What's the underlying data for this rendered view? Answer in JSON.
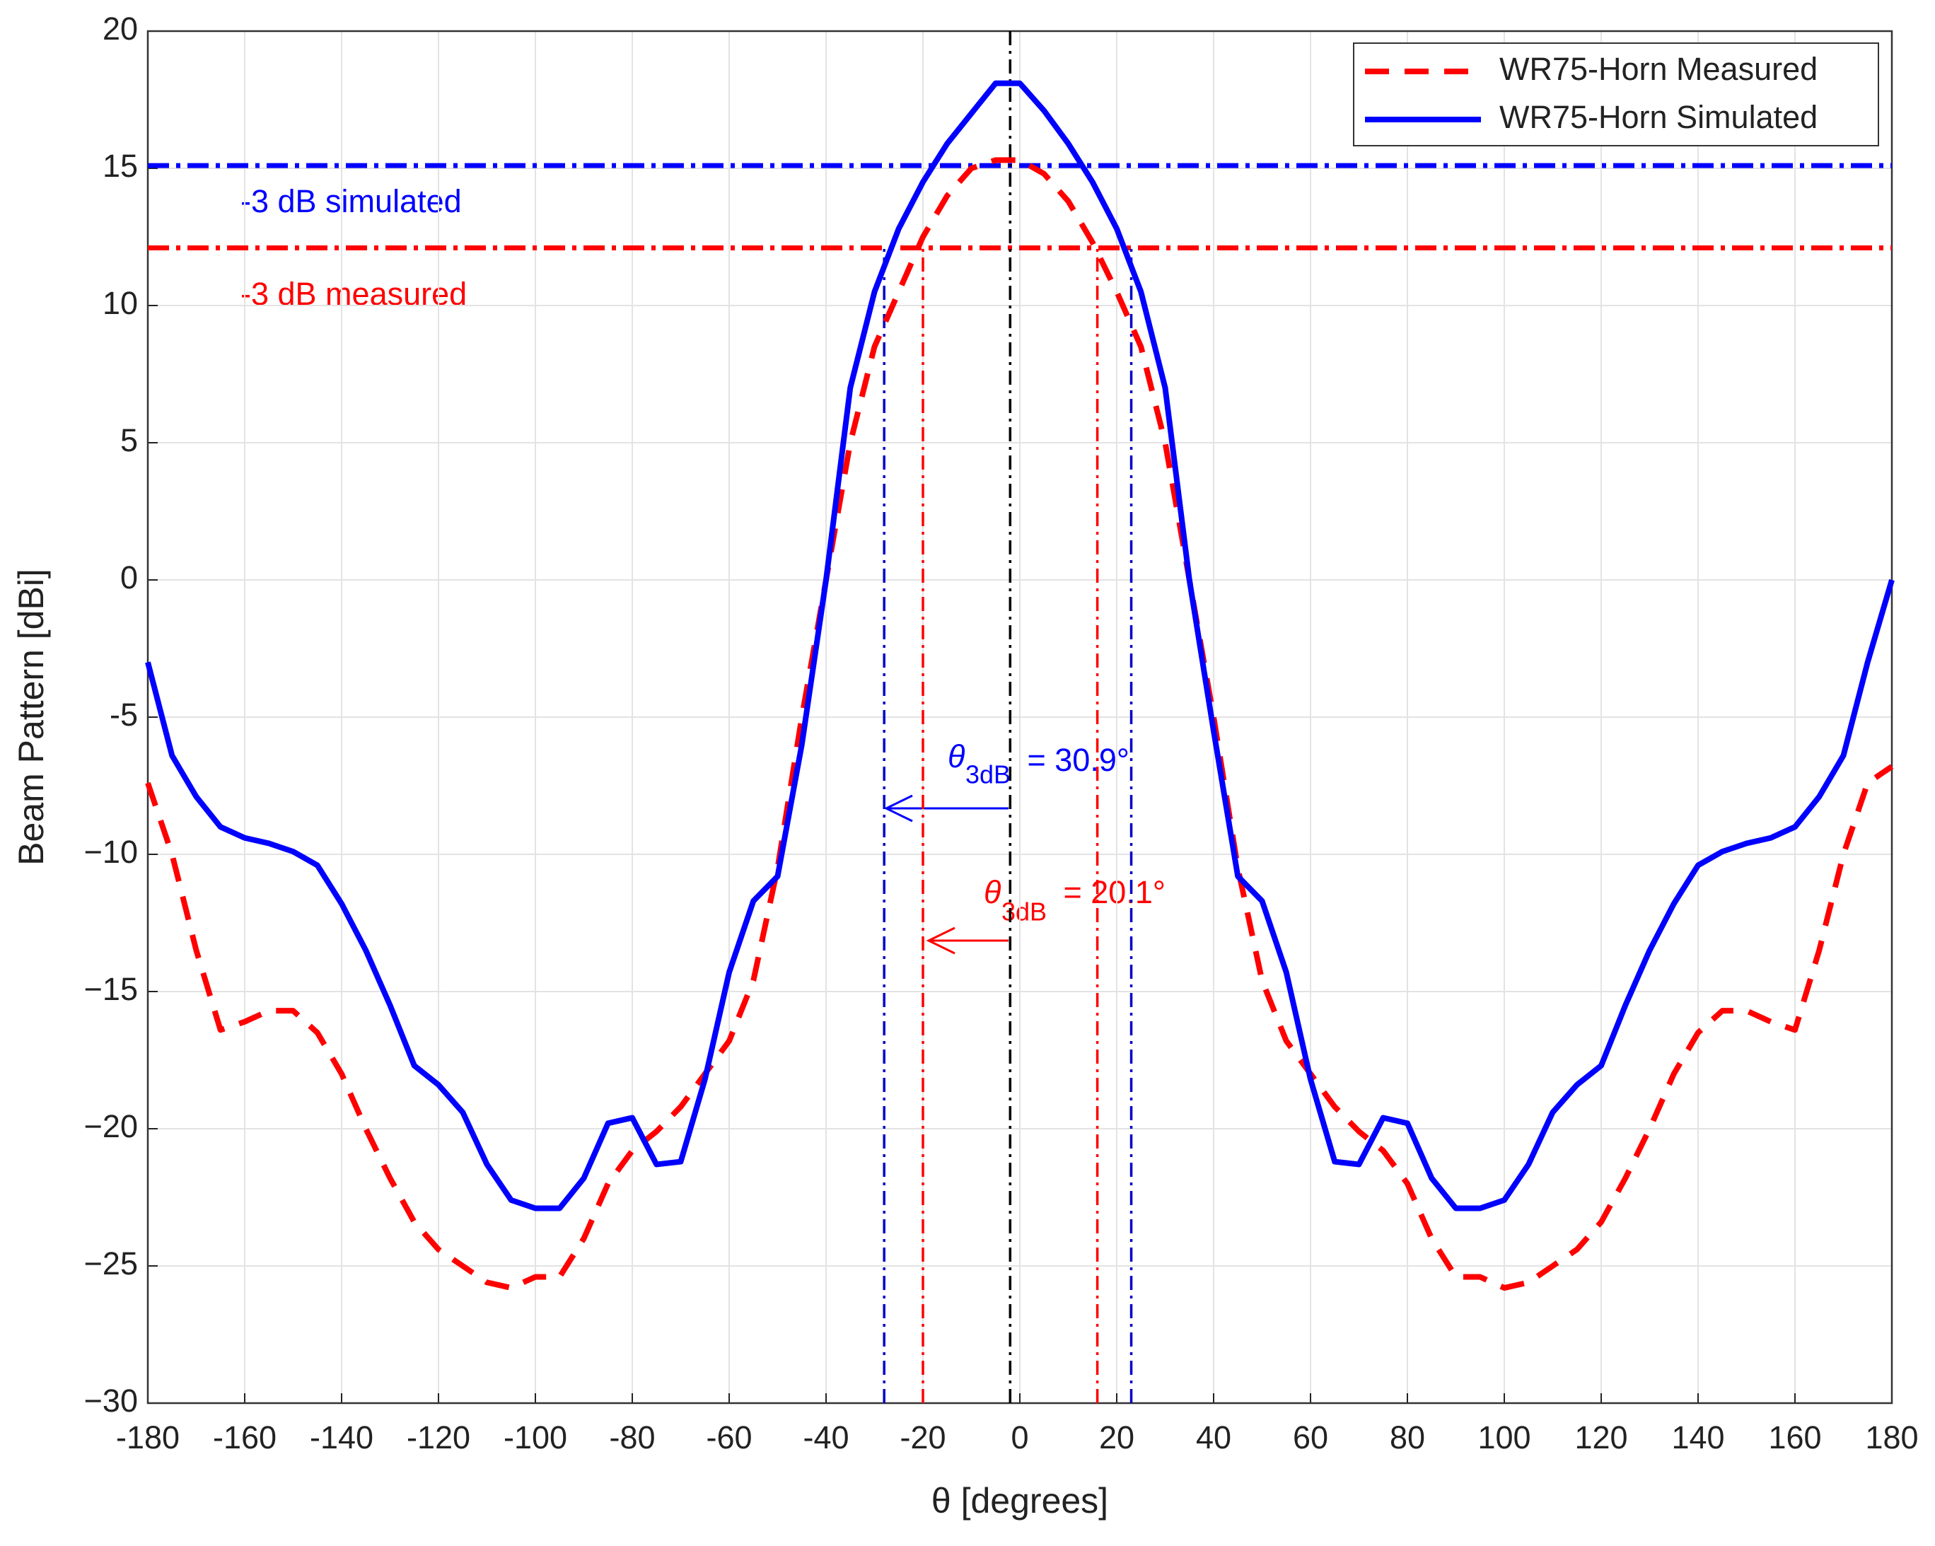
{
  "chart_data": {
    "type": "line",
    "xlabel": "θ [degrees]",
    "ylabel": "Beam Pattern [dBi]",
    "x": [
      -180,
      -175,
      -170,
      -165,
      -160,
      -155,
      -150,
      -145,
      -140,
      -135,
      -130,
      -125,
      -120,
      -115,
      -110,
      -105,
      -100,
      -95,
      -90,
      -85,
      -80,
      -75,
      -70,
      -65,
      -60,
      -55,
      -50,
      -45,
      -40,
      -35,
      -30,
      -25,
      -20,
      -15,
      -10,
      -5,
      0,
      5,
      10,
      15,
      20,
      25,
      30,
      35,
      40,
      45,
      50,
      55,
      60,
      65,
      70,
      75,
      80,
      85,
      90,
      95,
      100,
      105,
      110,
      115,
      120,
      125,
      130,
      135,
      140,
      145,
      150,
      155,
      160,
      165,
      170,
      175,
      180
    ],
    "series": [
      {
        "name": "WR75-Horn Measured",
        "color": "#ff0000",
        "dash": true,
        "values": [
          -7.4,
          -10,
          -13.5,
          -16.4,
          -16.1,
          -15.7,
          -15.7,
          -16.5,
          -18,
          -20,
          -21.8,
          -23.4,
          -24.4,
          -25,
          -25.6,
          -25.8,
          -25.4,
          -25.4,
          -24,
          -22,
          -20.8,
          -20.1,
          -19.2,
          -18,
          -16.8,
          -14.6,
          -10.5,
          -5,
          0,
          5,
          8.5,
          10.5,
          12.5,
          14,
          15,
          15.3,
          15.3,
          14.8,
          13.8,
          12.3,
          10.5,
          8.5,
          5,
          0,
          -5,
          -10.5,
          -14.6,
          -16.8,
          -18,
          -19.2,
          -20.1,
          -20.8,
          -22,
          -24,
          -25.4,
          -25.4,
          -25.8,
          -25.6,
          -25,
          -24.4,
          -23.4,
          -21.8,
          -20,
          -18,
          -16.5,
          -15.7,
          -15.7,
          -16.1,
          -16.4,
          -13.5,
          -10,
          -7.4,
          -6.8
        ]
      },
      {
        "name": "WR75-Horn Simulated",
        "color": "#0000ff",
        "dash": false,
        "values": [
          -3,
          -6.4,
          -7.9,
          -9,
          -9.4,
          -9.6,
          -9.9,
          -10.4,
          -11.8,
          -13.5,
          -15.5,
          -17.7,
          -18.4,
          -19.4,
          -21.3,
          -22.6,
          -22.9,
          -22.9,
          -21.8,
          -19.8,
          -19.6,
          -21.3,
          -21.2,
          -18.2,
          -14.3,
          -11.7,
          -10.8,
          -6,
          0,
          7,
          10.5,
          12.8,
          14.5,
          15.9,
          17,
          18.1,
          18.1,
          17.1,
          15.9,
          14.5,
          12.8,
          10.5,
          7,
          0,
          -5.5,
          -10.8,
          -11.7,
          -14.3,
          -18.2,
          -21.2,
          -21.3,
          -19.6,
          -19.8,
          -21.8,
          -22.9,
          -22.9,
          -22.6,
          -21.3,
          -19.4,
          -18.4,
          -17.7,
          -15.5,
          -13.5,
          -11.8,
          -10.4,
          -9.9,
          -9.6,
          -9.4,
          -9,
          -7.9,
          -6.4,
          -3,
          0
        ]
      }
    ],
    "hlines": [
      {
        "value": 15.1,
        "color": "#0000ff"
      },
      {
        "value": 12.1,
        "color": "#ff0000"
      }
    ],
    "vlines": [
      {
        "x": -2,
        "top": 20,
        "color": "#000000"
      },
      {
        "x": -28,
        "top": 12.1,
        "color": "#0000cc"
      },
      {
        "x": 23,
        "top": 12.1,
        "color": "#0000cc"
      },
      {
        "x": -20,
        "top": 12.1,
        "color": "#ff0000"
      },
      {
        "x": 16,
        "top": 12.1,
        "color": "#ff0000"
      }
    ],
    "annotations": [
      "-3 dB simulated",
      "-3 dB measured"
    ],
    "beamwidths": [
      {
        "symbol": "θ",
        "sub": "3dB",
        "text": " = 30.9°"
      },
      {
        "symbol": "θ",
        "sub": "3dB",
        "text": " = 20.1°"
      }
    ],
    "xlim": [
      -180,
      180
    ],
    "ylim": [
      -30,
      20
    ],
    "xticks": [
      -180,
      -160,
      -140,
      -120,
      -100,
      -80,
      -60,
      -40,
      -20,
      0,
      20,
      40,
      60,
      80,
      100,
      120,
      140,
      160,
      180
    ],
    "yticks": [
      {
        "value": -30,
        "label": "−30"
      },
      {
        "value": -25,
        "label": "−25"
      },
      {
        "value": -20,
        "label": "−20"
      },
      {
        "value": -15,
        "label": "−15"
      },
      {
        "value": -10,
        "label": "−10"
      },
      {
        "value": -5,
        "label": "-5"
      },
      0,
      5,
      10,
      15,
      20
    ],
    "grid": true,
    "legend": "upper right"
  }
}
